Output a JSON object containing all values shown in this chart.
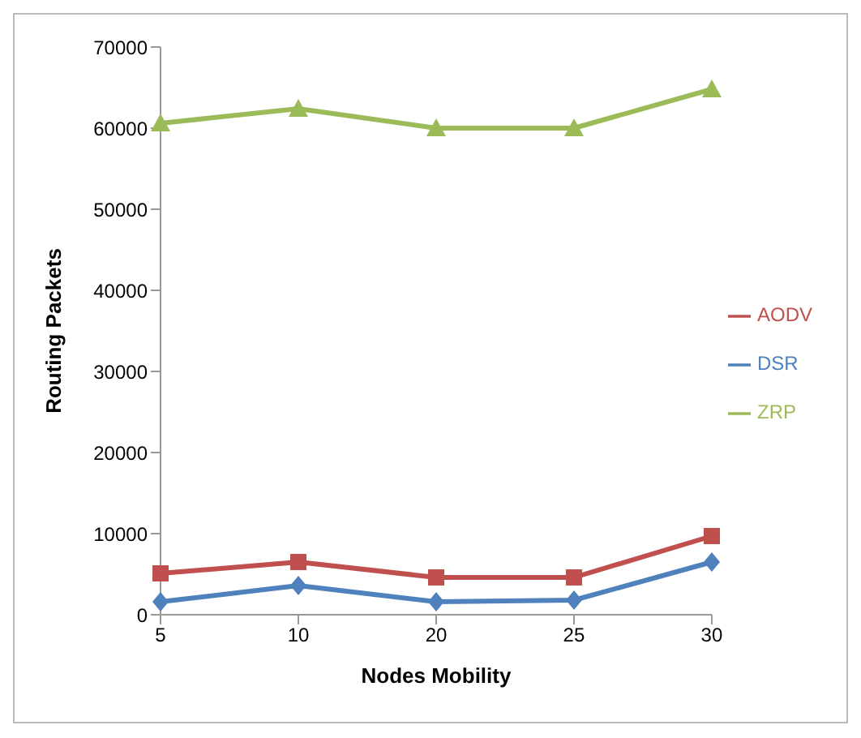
{
  "chart_data": {
    "type": "line",
    "xlabel": "Nodes Mobility",
    "ylabel": "Routing Packets",
    "categories": [
      "5",
      "10",
      "20",
      "25",
      "30"
    ],
    "series": [
      {
        "name": "ZRP",
        "color": "#9bbb59",
        "marker": "triangle",
        "values": [
          60600,
          62400,
          60000,
          60000,
          64800
        ]
      },
      {
        "name": "AODV",
        "color": "#c0504d",
        "marker": "square",
        "values": [
          5100,
          6500,
          4600,
          4600,
          9700
        ]
      },
      {
        "name": "DSR",
        "color": "#4f81bd",
        "marker": "diamond",
        "values": [
          1600,
          3600,
          1600,
          1800,
          6500
        ]
      }
    ],
    "ylim": [
      0,
      70000
    ],
    "yticks": [
      0,
      10000,
      20000,
      30000,
      40000,
      50000,
      60000,
      70000
    ],
    "grid": false,
    "legend": "right"
  }
}
